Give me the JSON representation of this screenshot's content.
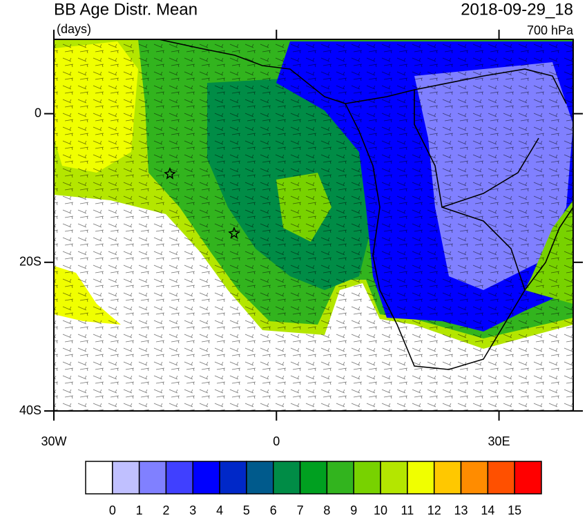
{
  "header": {
    "title": "BB Age Distr. Mean",
    "units": "(days)",
    "time": "2018-09-29_18",
    "level": "700 hPa"
  },
  "map": {
    "lon_range": [
      -30,
      40
    ],
    "lat_range": [
      -40,
      10
    ],
    "lon_ticks": [
      {
        "value": -30,
        "label": "30W"
      },
      {
        "value": 0,
        "label": "0"
      },
      {
        "value": 30,
        "label": "30E"
      }
    ],
    "lat_ticks": [
      {
        "value": 0,
        "label": "0"
      },
      {
        "value": -20,
        "label": "20S"
      },
      {
        "value": -40,
        "label": "40S"
      }
    ]
  },
  "colorbar": {
    "labels": [
      "0",
      "1",
      "2",
      "3",
      "4",
      "5",
      "6",
      "7",
      "8",
      "9",
      "10",
      "11",
      "12",
      "13",
      "14",
      "15"
    ],
    "colors": [
      "#ffffff",
      "#c0c0ff",
      "#8080ff",
      "#4040ff",
      "#0000ff",
      "#0028c8",
      "#005a8c",
      "#008c46",
      "#00a020",
      "#32b41e",
      "#78d200",
      "#b4e600",
      "#f0ff00",
      "#ffc800",
      "#ff8c00",
      "#ff5000",
      "#ff0000"
    ]
  }
}
